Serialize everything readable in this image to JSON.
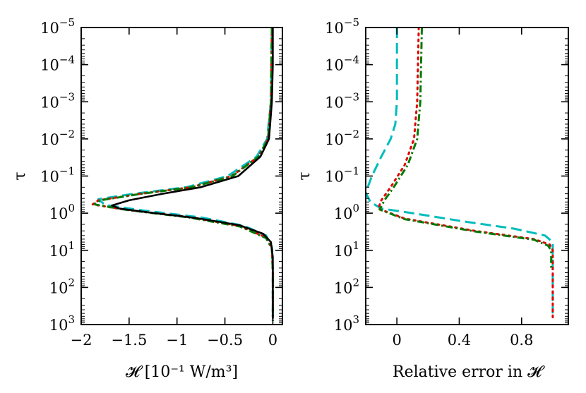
{
  "chart_data": [
    {
      "type": "line",
      "xlabel": "𝓗 [10⁻¹ W/m³]",
      "ylabel": "τ",
      "xlim": [
        -2.0,
        0.1
      ],
      "ylim": [
        1e-05,
        1000.0
      ],
      "y_scale": "log",
      "y_inverted": true,
      "grid": false,
      "xticks": [
        -2,
        -1.5,
        -1,
        -0.5,
        0
      ],
      "xtick_labels": [
        "−2",
        "−1.5",
        "−1",
        "−0.5",
        "0"
      ],
      "yticks": [
        1e-05,
        0.0001,
        0.001,
        0.01,
        0.1,
        1,
        10,
        100,
        1000
      ],
      "ytick_labels": [
        {
          "base": "10",
          "exp": "−5"
        },
        {
          "base": "10",
          "exp": "−4"
        },
        {
          "base": "10",
          "exp": "−3"
        },
        {
          "base": "10",
          "exp": "−2"
        },
        {
          "base": "10",
          "exp": "−1"
        },
        {
          "base": "10",
          "exp": "0"
        },
        {
          "base": "10",
          "exp": "1"
        },
        {
          "base": "10",
          "exp": "2"
        },
        {
          "base": "10",
          "exp": "3"
        }
      ],
      "series": [
        {
          "color": "#00bcbc",
          "style": "dashed",
          "points": [
            [
              -0.01,
              1e-05
            ],
            [
              -0.02,
              0.001
            ],
            [
              -0.06,
              0.01
            ],
            [
              -0.17,
              0.03
            ],
            [
              -0.47,
              0.1
            ],
            [
              -0.9,
              0.2
            ],
            [
              -1.45,
              0.3
            ],
            [
              -1.82,
              0.42
            ],
            [
              -1.75,
              0.6
            ],
            [
              -1.35,
              0.85
            ],
            [
              -0.75,
              1.3
            ],
            [
              -0.3,
              2.2
            ],
            [
              -0.07,
              4
            ],
            [
              -0.01,
              8
            ],
            [
              0,
              30
            ],
            [
              0,
              600
            ]
          ]
        },
        {
          "color": "#e00000",
          "style": "dotted",
          "points": [
            [
              -0.01,
              1e-05
            ],
            [
              -0.02,
              0.001
            ],
            [
              -0.05,
              0.01
            ],
            [
              -0.15,
              0.03
            ],
            [
              -0.43,
              0.1
            ],
            [
              -0.85,
              0.2
            ],
            [
              -1.38,
              0.3
            ],
            [
              -1.82,
              0.45
            ],
            [
              -1.88,
              0.58
            ],
            [
              -1.55,
              0.8
            ],
            [
              -0.9,
              1.25
            ],
            [
              -0.35,
              2.2
            ],
            [
              -0.07,
              4.5
            ],
            [
              -0.01,
              9
            ],
            [
              0,
              40
            ],
            [
              0,
              800
            ]
          ]
        },
        {
          "color": "#007a00",
          "style": "dashdot",
          "points": [
            [
              -0.01,
              1e-05
            ],
            [
              -0.02,
              0.001
            ],
            [
              -0.05,
              0.01
            ],
            [
              -0.15,
              0.03
            ],
            [
              -0.42,
              0.1
            ],
            [
              -0.84,
              0.2
            ],
            [
              -1.37,
              0.3
            ],
            [
              -1.8,
              0.45
            ],
            [
              -1.86,
              0.58
            ],
            [
              -1.52,
              0.82
            ],
            [
              -0.88,
              1.3
            ],
            [
              -0.34,
              2.3
            ],
            [
              -0.07,
              4.7
            ],
            [
              -0.01,
              9
            ],
            [
              0,
              40
            ],
            [
              0,
              800
            ]
          ]
        },
        {
          "color": "#000000",
          "style": "solid",
          "points": [
            [
              0,
              1e-05
            ],
            [
              0,
              0.0001
            ],
            [
              -0.01,
              0.001
            ],
            [
              -0.04,
              0.01
            ],
            [
              -0.13,
              0.03
            ],
            [
              -0.36,
              0.1
            ],
            [
              -0.75,
              0.2
            ],
            [
              -1.15,
              0.3
            ],
            [
              -1.5,
              0.45
            ],
            [
              -1.68,
              0.62
            ],
            [
              -1.6,
              0.75
            ],
            [
              -1.3,
              0.95
            ],
            [
              -0.8,
              1.35
            ],
            [
              -0.35,
              2.1
            ],
            [
              -0.1,
              3.6
            ],
            [
              -0.02,
              6
            ],
            [
              0,
              15
            ],
            [
              0,
              100
            ],
            [
              0,
              700
            ]
          ]
        }
      ]
    },
    {
      "type": "line",
      "xlabel": "Relative error in 𝓗",
      "ylabel": "τ",
      "xlim": [
        -0.2,
        1.1
      ],
      "ylim": [
        1e-05,
        1000.0
      ],
      "y_scale": "log",
      "y_inverted": true,
      "grid": false,
      "xticks": [
        0,
        0.4,
        0.8
      ],
      "xtick_labels": [
        "0",
        "0.4",
        "0.8"
      ],
      "yticks": [
        1e-05,
        0.0001,
        0.001,
        0.01,
        0.1,
        1,
        10,
        100,
        1000
      ],
      "ytick_labels": [
        {
          "base": "10",
          "exp": "−5"
        },
        {
          "base": "10",
          "exp": "−4"
        },
        {
          "base": "10",
          "exp": "−3"
        },
        {
          "base": "10",
          "exp": "−2"
        },
        {
          "base": "10",
          "exp": "−1"
        },
        {
          "base": "10",
          "exp": "0"
        },
        {
          "base": "10",
          "exp": "1"
        },
        {
          "base": "10",
          "exp": "2"
        },
        {
          "base": "10",
          "exp": "3"
        }
      ],
      "series": [
        {
          "color": "#00bcbc",
          "style": "dashed",
          "points": [
            [
              0,
              1e-05
            ],
            [
              0,
              0.001
            ],
            [
              -0.01,
              0.004
            ],
            [
              -0.04,
              0.01
            ],
            [
              -0.1,
              0.03
            ],
            [
              -0.16,
              0.1
            ],
            [
              -0.2,
              0.28
            ],
            [
              -0.17,
              0.5
            ],
            [
              -0.1,
              0.75
            ],
            [
              0.1,
              1
            ],
            [
              0.4,
              1.6
            ],
            [
              0.75,
              2.6
            ],
            [
              0.95,
              4
            ],
            [
              1.0,
              6
            ],
            [
              1.0,
              30
            ],
            [
              1.0,
              500
            ]
          ]
        },
        {
          "color": "#e00000",
          "style": "dotted",
          "points": [
            [
              0.14,
              1e-05
            ],
            [
              0.13,
              0.001
            ],
            [
              0.11,
              0.01
            ],
            [
              0.05,
              0.05
            ],
            [
              -0.04,
              0.2
            ],
            [
              -0.1,
              0.45
            ],
            [
              -0.12,
              0.75
            ],
            [
              0.05,
              1.4
            ],
            [
              0.5,
              3
            ],
            [
              0.88,
              5
            ],
            [
              0.98,
              7
            ],
            [
              1.0,
              10
            ],
            [
              1.0,
              100
            ],
            [
              1.0,
              700
            ]
          ]
        },
        {
          "color": "#007a00",
          "style": "dashdot",
          "points": [
            [
              0.16,
              1e-05
            ],
            [
              0.15,
              0.001
            ],
            [
              0.13,
              0.01
            ],
            [
              0.07,
              0.05
            ],
            [
              -0.02,
              0.2
            ],
            [
              -0.08,
              0.45
            ],
            [
              -0.11,
              0.8
            ],
            [
              0.05,
              1.45
            ],
            [
              0.5,
              3.1
            ],
            [
              0.88,
              5.2
            ],
            [
              0.97,
              7.5
            ],
            [
              0.99,
              10
            ],
            [
              0.99,
              30
            ]
          ]
        }
      ]
    }
  ]
}
